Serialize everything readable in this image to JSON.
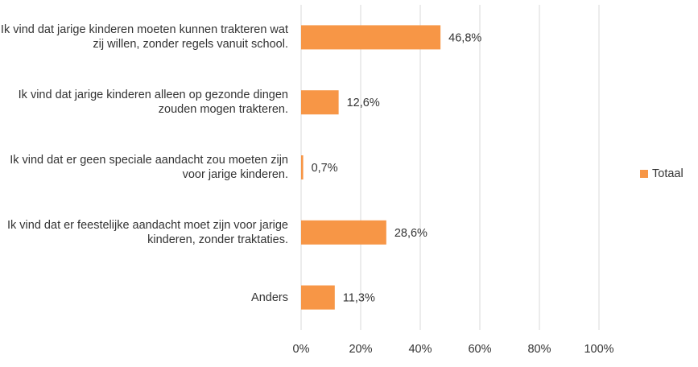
{
  "chart_data": {
    "type": "bar",
    "orientation": "horizontal",
    "categories": [
      "Ik vind dat jarige kinderen moeten kunnen trakteren wat zij willen, zonder regels vanuit school.",
      "Ik vind dat jarige kinderen alleen op gezonde dingen zouden mogen trakteren.",
      "Ik vind dat er geen speciale aandacht zou moeten zijn voor jarige kinderen.",
      "Ik vind dat er feestelijke aandacht moet zijn voor jarige kinderen, zonder traktaties.",
      "Anders"
    ],
    "series": [
      {
        "name": "Totaal",
        "values": [
          46.8,
          12.6,
          0.7,
          28.6,
          11.3
        ],
        "data_labels": [
          "46,8%",
          "12,6%",
          "0,7%",
          "28,6%",
          "11,3%"
        ],
        "color": "#F79646"
      }
    ],
    "xlim": [
      0,
      100
    ],
    "xticks": [
      0,
      20,
      40,
      60,
      80,
      100
    ],
    "xtick_labels": [
      "0%",
      "20%",
      "40%",
      "60%",
      "80%",
      "100%"
    ],
    "grid": "vertical",
    "legend_position": "right"
  },
  "legend": {
    "label": "Totaal"
  },
  "colors": {
    "bar": "#F79646",
    "grid": "#D9D9D9",
    "text": "#333333"
  }
}
